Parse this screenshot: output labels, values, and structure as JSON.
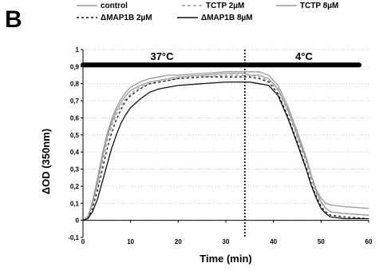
{
  "panel_label": "B",
  "chart_data": {
    "type": "line",
    "xlabel": "Time (min)",
    "ylabel": "ΔOD (350nm)",
    "xlim": [
      0,
      60
    ],
    "ylim": [
      -0.1,
      1.0
    ],
    "x_ticks": [
      "0",
      "10",
      "20",
      "30",
      "40",
      "50",
      "60"
    ],
    "y_ticks": [
      "-0,1",
      "0",
      "0,1",
      "0,2",
      "0,3",
      "0,4",
      "0,5",
      "0,6",
      "0,7",
      "0,8",
      "0,9",
      "1"
    ],
    "grid": "horizontal dotted",
    "legend_placement": "top",
    "annotations": {
      "temp_left": "37°C",
      "temp_right": "4°C",
      "switch_time": 34,
      "bar_y": 0.91,
      "bar_x": [
        0,
        58
      ]
    },
    "series": [
      {
        "name": "control",
        "color": "#9a9a9a",
        "dash": "solid",
        "x": [
          0,
          1,
          2,
          3,
          4,
          5,
          6,
          7,
          8,
          9,
          10,
          12,
          14,
          16,
          18,
          20,
          25,
          30,
          34,
          35,
          37,
          39,
          41,
          43,
          45,
          47,
          48,
          49,
          50,
          51,
          52,
          55,
          60
        ],
        "y": [
          0.0,
          0.02,
          0.1,
          0.22,
          0.36,
          0.48,
          0.57,
          0.64,
          0.69,
          0.73,
          0.76,
          0.79,
          0.81,
          0.82,
          0.83,
          0.84,
          0.85,
          0.86,
          0.86,
          0.85,
          0.85,
          0.83,
          0.77,
          0.65,
          0.5,
          0.35,
          0.26,
          0.18,
          0.13,
          0.1,
          0.09,
          0.08,
          0.07
        ]
      },
      {
        "name": "TCTP 2µM",
        "color": "#9a9a9a",
        "dash": "4,3",
        "x": [
          0,
          1,
          2,
          3,
          4,
          5,
          6,
          7,
          8,
          9,
          10,
          12,
          14,
          16,
          18,
          20,
          25,
          30,
          34,
          35,
          37,
          39,
          41,
          43,
          45,
          47,
          48,
          49,
          50,
          51,
          52,
          55,
          60
        ],
        "y": [
          0.0,
          0.02,
          0.09,
          0.2,
          0.33,
          0.45,
          0.55,
          0.62,
          0.67,
          0.71,
          0.74,
          0.78,
          0.8,
          0.81,
          0.82,
          0.83,
          0.84,
          0.85,
          0.85,
          0.85,
          0.84,
          0.82,
          0.76,
          0.64,
          0.49,
          0.33,
          0.24,
          0.16,
          0.1,
          0.07,
          0.05,
          0.04,
          0.03
        ]
      },
      {
        "name": "TCTP 8µM",
        "color": "#9a9a9a",
        "dash": "solid",
        "x": [
          0,
          1,
          2,
          3,
          4,
          5,
          6,
          7,
          8,
          9,
          10,
          12,
          14,
          16,
          18,
          20,
          25,
          30,
          34,
          35,
          37,
          39,
          41,
          43,
          45,
          47,
          48,
          49,
          50,
          51,
          52,
          55,
          60
        ],
        "y": [
          0.0,
          0.02,
          0.11,
          0.24,
          0.38,
          0.5,
          0.59,
          0.66,
          0.71,
          0.75,
          0.78,
          0.81,
          0.83,
          0.84,
          0.85,
          0.85,
          0.86,
          0.87,
          0.87,
          0.87,
          0.87,
          0.85,
          0.79,
          0.67,
          0.52,
          0.36,
          0.26,
          0.17,
          0.11,
          0.07,
          0.05,
          0.04,
          0.03
        ]
      },
      {
        "name": "ΔMAP1B 2µM",
        "color": "#111111",
        "dash": "3,3",
        "x": [
          0,
          1,
          2,
          3,
          4,
          5,
          6,
          7,
          8,
          9,
          10,
          12,
          14,
          16,
          18,
          20,
          25,
          30,
          34,
          35,
          37,
          39,
          41,
          43,
          45,
          47,
          48,
          49,
          50,
          51,
          52,
          55,
          60
        ],
        "y": [
          0.0,
          0.01,
          0.07,
          0.17,
          0.29,
          0.41,
          0.51,
          0.59,
          0.65,
          0.7,
          0.73,
          0.77,
          0.8,
          0.81,
          0.82,
          0.83,
          0.84,
          0.84,
          0.84,
          0.84,
          0.83,
          0.81,
          0.74,
          0.61,
          0.46,
          0.3,
          0.21,
          0.14,
          0.08,
          0.05,
          0.03,
          0.02,
          0.01
        ]
      },
      {
        "name": "ΔMAP1B 8µM",
        "color": "#111111",
        "dash": "solid",
        "x": [
          0,
          1,
          2,
          3,
          4,
          5,
          6,
          7,
          8,
          9,
          10,
          12,
          14,
          16,
          18,
          20,
          25,
          30,
          34,
          35,
          37,
          39,
          41,
          43,
          45,
          47,
          48,
          49,
          50,
          51,
          52,
          55,
          60
        ],
        "y": [
          0.0,
          0.01,
          0.05,
          0.12,
          0.22,
          0.32,
          0.42,
          0.5,
          0.57,
          0.62,
          0.66,
          0.71,
          0.75,
          0.77,
          0.78,
          0.79,
          0.8,
          0.81,
          0.81,
          0.81,
          0.8,
          0.79,
          0.73,
          0.6,
          0.45,
          0.29,
          0.2,
          0.13,
          0.07,
          0.04,
          0.02,
          0.01,
          0.01
        ]
      }
    ]
  }
}
